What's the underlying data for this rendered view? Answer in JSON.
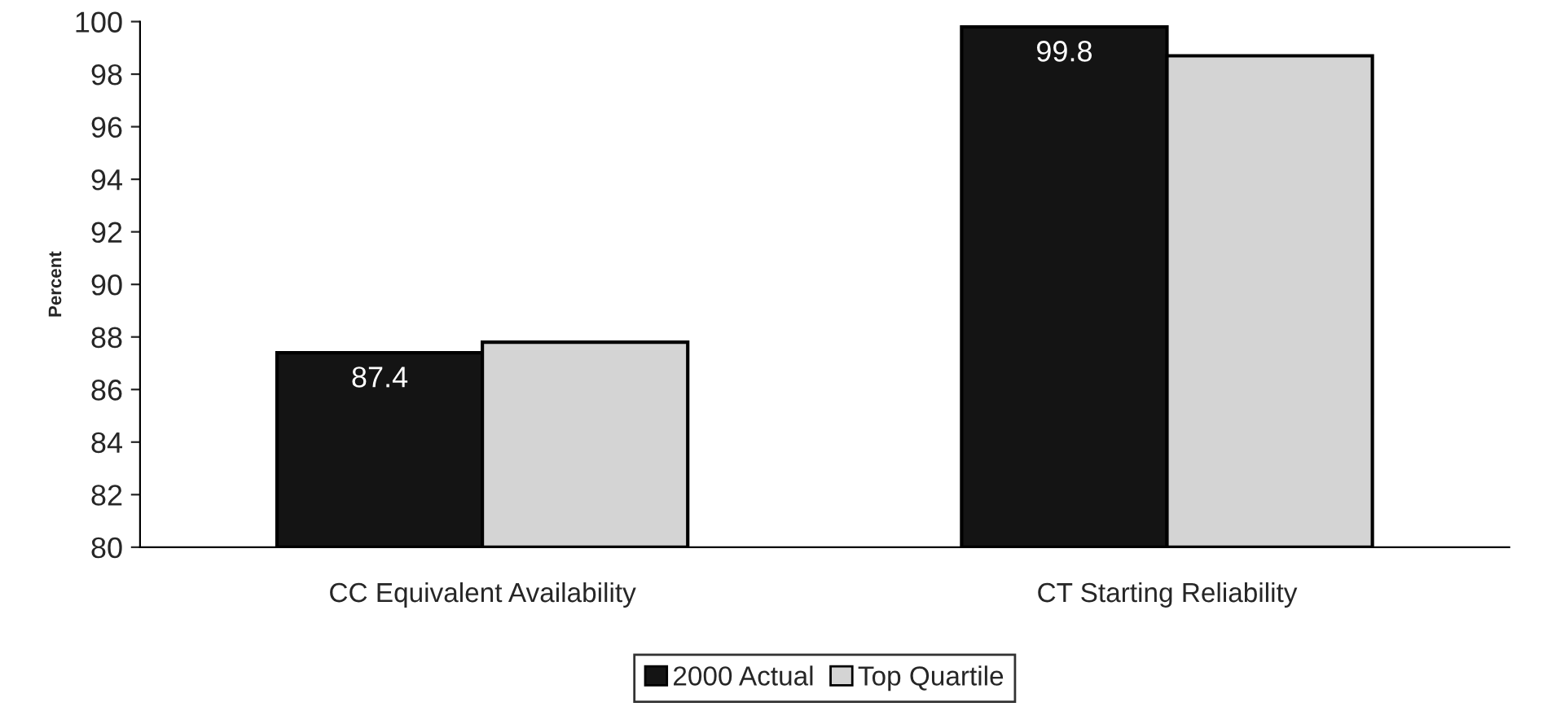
{
  "chart_data": {
    "type": "bar",
    "ylabel": "Percent",
    "categories": [
      "CC Equivalent Availability",
      "CT Starting Reliability"
    ],
    "series": [
      {
        "name": "2000 Actual",
        "color": "#141414",
        "values": [
          87.4,
          99.8
        ],
        "value_labels": [
          "87.4",
          "99.8"
        ]
      },
      {
        "name": "Top Quartile",
        "color": "#d4d4d4",
        "values": [
          87.8,
          98.7
        ]
      }
    ],
    "ylim": [
      80,
      100
    ],
    "yticks": [
      80,
      82,
      84,
      86,
      88,
      90,
      92,
      94,
      96,
      98,
      100
    ],
    "grid": false,
    "legend": "bottom"
  }
}
